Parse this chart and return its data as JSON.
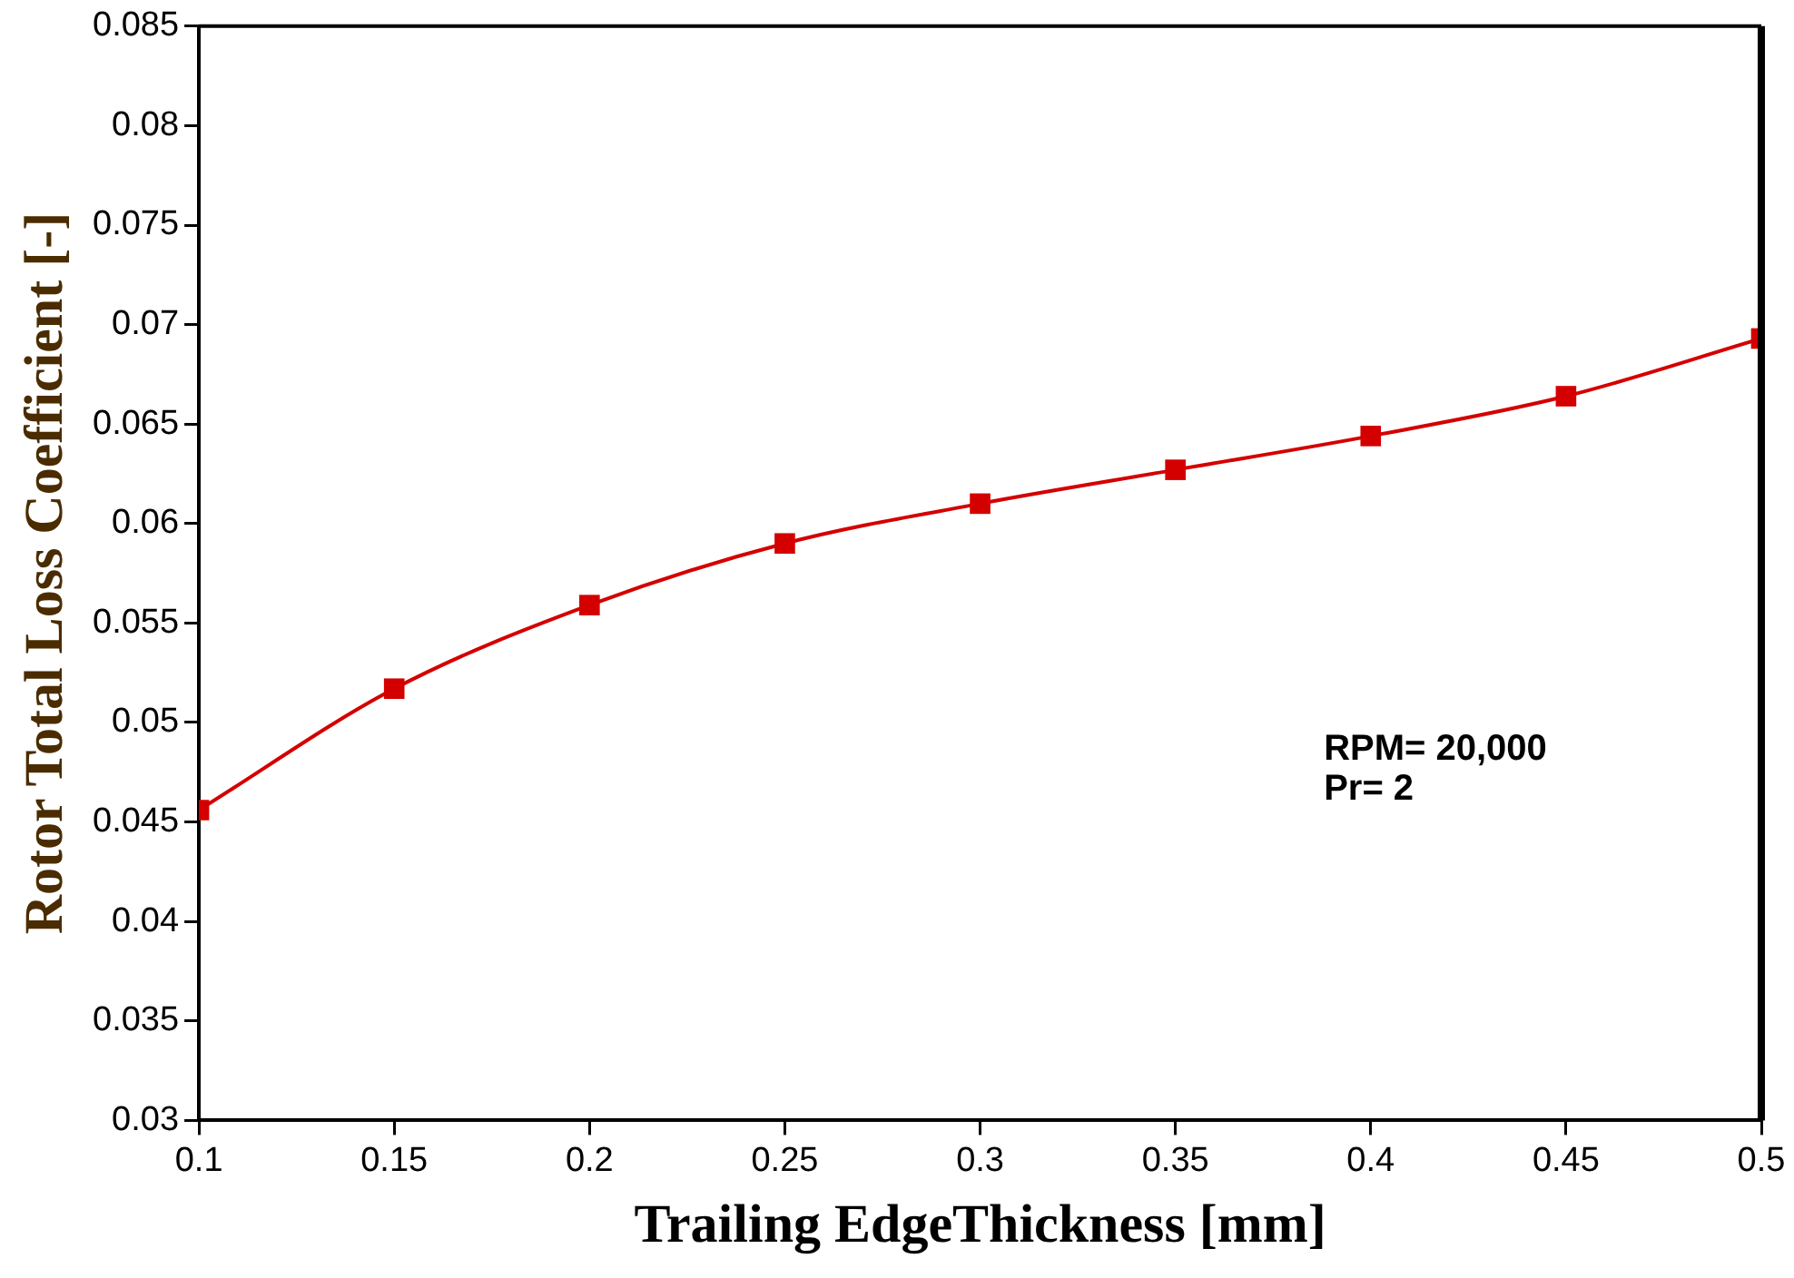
{
  "chart_data": {
    "type": "line",
    "xlabel": "Trailing EdgeThickness [mm]",
    "ylabel": "Rotor Total Loss Coefficient [-]",
    "x": [
      0.1,
      0.15,
      0.2,
      0.25,
      0.3,
      0.35,
      0.4,
      0.45,
      0.5
    ],
    "series": [
      {
        "color": "#d40000",
        "values": [
          0.0456,
          0.0517,
          0.0559,
          0.059,
          0.061,
          0.0627,
          0.0644,
          0.0664,
          0.0693
        ]
      }
    ],
    "xlim": [
      0.1,
      0.5
    ],
    "xticks": [
      0.1,
      0.15,
      0.2,
      0.25,
      0.3,
      0.35,
      0.4,
      0.45,
      0.5
    ],
    "ylim": [
      0.03,
      0.085
    ],
    "yticks": [
      0.03,
      0.035,
      0.04,
      0.045,
      0.05,
      0.055,
      0.06,
      0.065,
      0.07,
      0.075,
      0.08,
      0.085
    ],
    "annotations": [
      "RPM= 20,000",
      "Pr= 2"
    ],
    "grid": false,
    "legend": false,
    "marker": "square",
    "line_style": "solid"
  }
}
